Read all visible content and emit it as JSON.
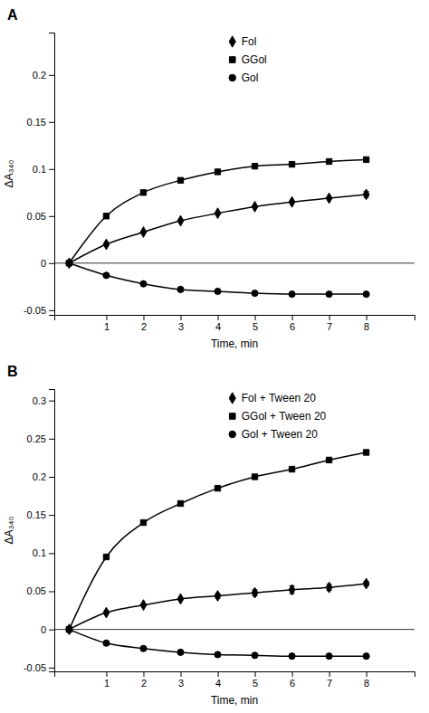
{
  "chart_data": [
    {
      "type": "line",
      "title": "A",
      "xlabel": "Time, min",
      "ylabel": "ΔA₃₄₀",
      "xlim": [
        -0.4,
        9.3
      ],
      "xticks": [
        1,
        2,
        3,
        4,
        5,
        6,
        7,
        8
      ],
      "ylim": [
        -0.055,
        0.245
      ],
      "yticks": [
        -0.05,
        0,
        0.05,
        0.1,
        0.15,
        0.2
      ],
      "legend": "top",
      "series": [
        {
          "name": "Fol",
          "color": "#000000",
          "marker": "diamond",
          "x": [
            0,
            1,
            2,
            3,
            4,
            5,
            6,
            7,
            8
          ],
          "values": [
            0,
            0.02,
            0.033,
            0.045,
            0.053,
            0.06,
            0.065,
            0.069,
            0.073
          ],
          "yerr": [
            0,
            0,
            0,
            0,
            0,
            0,
            0,
            0,
            0.003
          ]
        },
        {
          "name": "GGol",
          "color": "#000000",
          "marker": "square",
          "x": [
            0,
            1,
            2,
            3,
            4,
            5,
            6,
            7,
            8
          ],
          "values": [
            0,
            0.05,
            0.075,
            0.088,
            0.097,
            0.103,
            0.105,
            0.108,
            0.11
          ],
          "yerr": [
            0,
            0,
            0,
            0,
            0,
            0,
            0.002,
            0,
            0
          ]
        },
        {
          "name": "Gol",
          "color": "#000000",
          "marker": "circle",
          "x": [
            0,
            1,
            2,
            3,
            4,
            5,
            6,
            7,
            8
          ],
          "values": [
            0,
            -0.013,
            -0.022,
            -0.028,
            -0.03,
            -0.032,
            -0.033,
            -0.033,
            -0.033
          ],
          "yerr": [
            0,
            0,
            0,
            0,
            0,
            0,
            0,
            0,
            0
          ]
        }
      ]
    },
    {
      "type": "line",
      "title": "B",
      "xlabel": "Time, min",
      "ylabel": "ΔA₃₄₀",
      "xlim": [
        -0.4,
        9.3
      ],
      "xticks": [
        1,
        2,
        3,
        4,
        5,
        6,
        7,
        8
      ],
      "ylim": [
        -0.055,
        0.315
      ],
      "yticks": [
        -0.05,
        0,
        0.05,
        0.1,
        0.15,
        0.2,
        0.25,
        0.3
      ],
      "legend": "top",
      "series": [
        {
          "name": "Fol + Tween 20",
          "color": "#000000",
          "marker": "diamond",
          "x": [
            0,
            1,
            2,
            3,
            4,
            5,
            6,
            7,
            8
          ],
          "values": [
            0,
            0.022,
            0.032,
            0.04,
            0.044,
            0.048,
            0.052,
            0.055,
            0.06
          ],
          "yerr": [
            0,
            0,
            0,
            0,
            0.003,
            0.004,
            0.005,
            0.004,
            0.003
          ]
        },
        {
          "name": "GGol + Tween 20",
          "color": "#000000",
          "marker": "square",
          "x": [
            0,
            1,
            2,
            3,
            4,
            5,
            6,
            7,
            8
          ],
          "values": [
            0,
            0.095,
            0.14,
            0.165,
            0.185,
            0.2,
            0.21,
            0.222,
            0.232
          ],
          "yerr": [
            0,
            0,
            0,
            0,
            0,
            0,
            0,
            0,
            0
          ]
        },
        {
          "name": "Gol + Tween 20",
          "color": "#000000",
          "marker": "circle",
          "x": [
            0,
            1,
            2,
            3,
            4,
            5,
            6,
            7,
            8
          ],
          "values": [
            0,
            -0.018,
            -0.025,
            -0.03,
            -0.033,
            -0.034,
            -0.035,
            -0.035,
            -0.035
          ],
          "yerr": [
            0,
            0,
            0,
            0,
            0,
            0,
            0,
            0,
            0
          ]
        }
      ]
    }
  ]
}
